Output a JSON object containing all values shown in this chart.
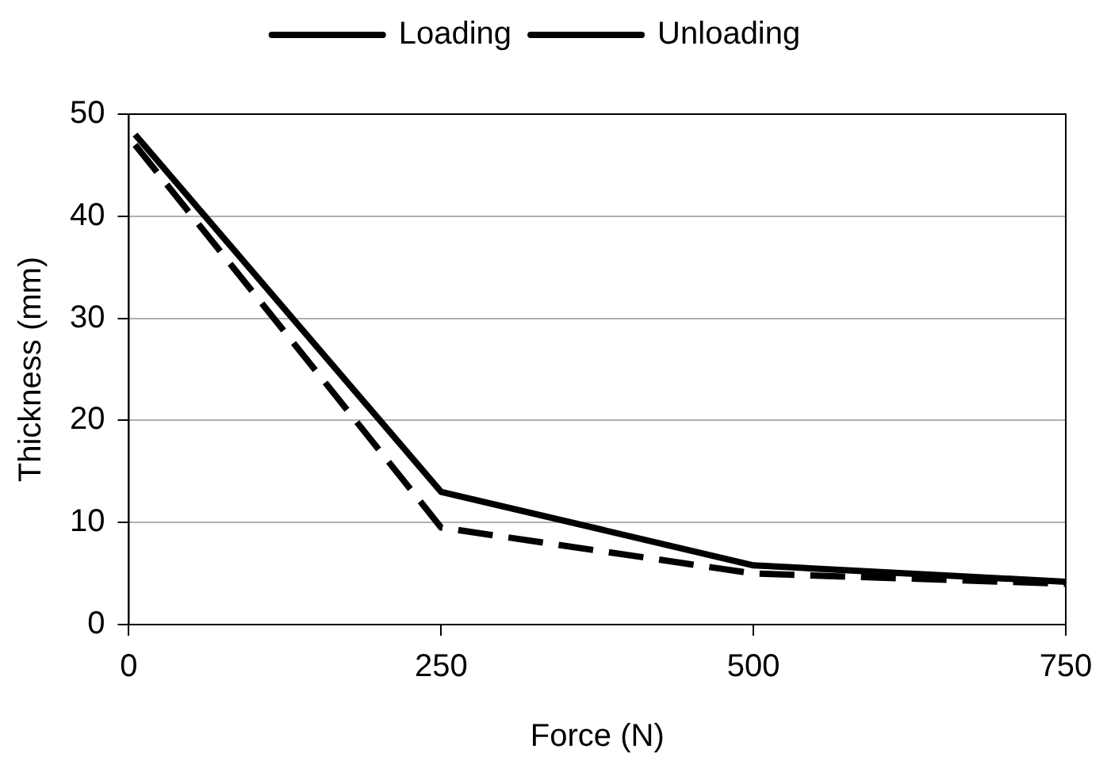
{
  "chart_data": {
    "type": "line",
    "xlabel": "Force (N)",
    "ylabel": "Thickness (mm)",
    "xlim": [
      0,
      750
    ],
    "xticks": [
      0,
      250,
      500,
      750
    ],
    "ylim": [
      0,
      50
    ],
    "yticks": [
      0,
      10,
      20,
      30,
      40,
      50
    ],
    "grid": "y",
    "legend": "top",
    "marker": "none",
    "series": [
      {
        "name": "Loading",
        "color": "#000000",
        "line_style": "solid",
        "x": [
          5,
          250,
          500,
          750
        ],
        "values": [
          48,
          13,
          5.8,
          4.2
        ]
      },
      {
        "name": "Unloading",
        "color": "#000000",
        "line_style": "dashed",
        "x": [
          5,
          250,
          500,
          750
        ],
        "values": [
          47,
          9.5,
          5,
          4
        ]
      }
    ]
  }
}
